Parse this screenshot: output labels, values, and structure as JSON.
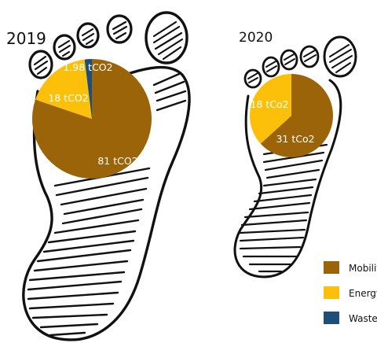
{
  "chart_data": [
    {
      "type": "pie",
      "title": "2019",
      "slices": [
        {
          "category": "Mobility",
          "value": 81,
          "label": "81 tCO2"
        },
        {
          "category": "Energy",
          "value": 18,
          "label": "18 tCO2"
        },
        {
          "category": "Waste",
          "value": 1.98,
          "label": "1.98 tCO2"
        }
      ]
    },
    {
      "type": "pie",
      "title": "2020",
      "slices": [
        {
          "category": "Mobility",
          "value": 31,
          "label": "31 tCo2"
        },
        {
          "category": "Energy",
          "value": 18,
          "label": "18 tCo2"
        }
      ]
    }
  ],
  "legend": [
    {
      "label": "Mobility",
      "color": "#9c6408"
    },
    {
      "label": "Energy",
      "color": "#fcc00a"
    },
    {
      "label": "Waste",
      "color": "#1f4e79"
    }
  ],
  "colors": {
    "Mobility": "#9c6408",
    "Energy": "#fcc00a",
    "Waste": "#1f4e79"
  },
  "decoration": "hand-drawn-footprints"
}
